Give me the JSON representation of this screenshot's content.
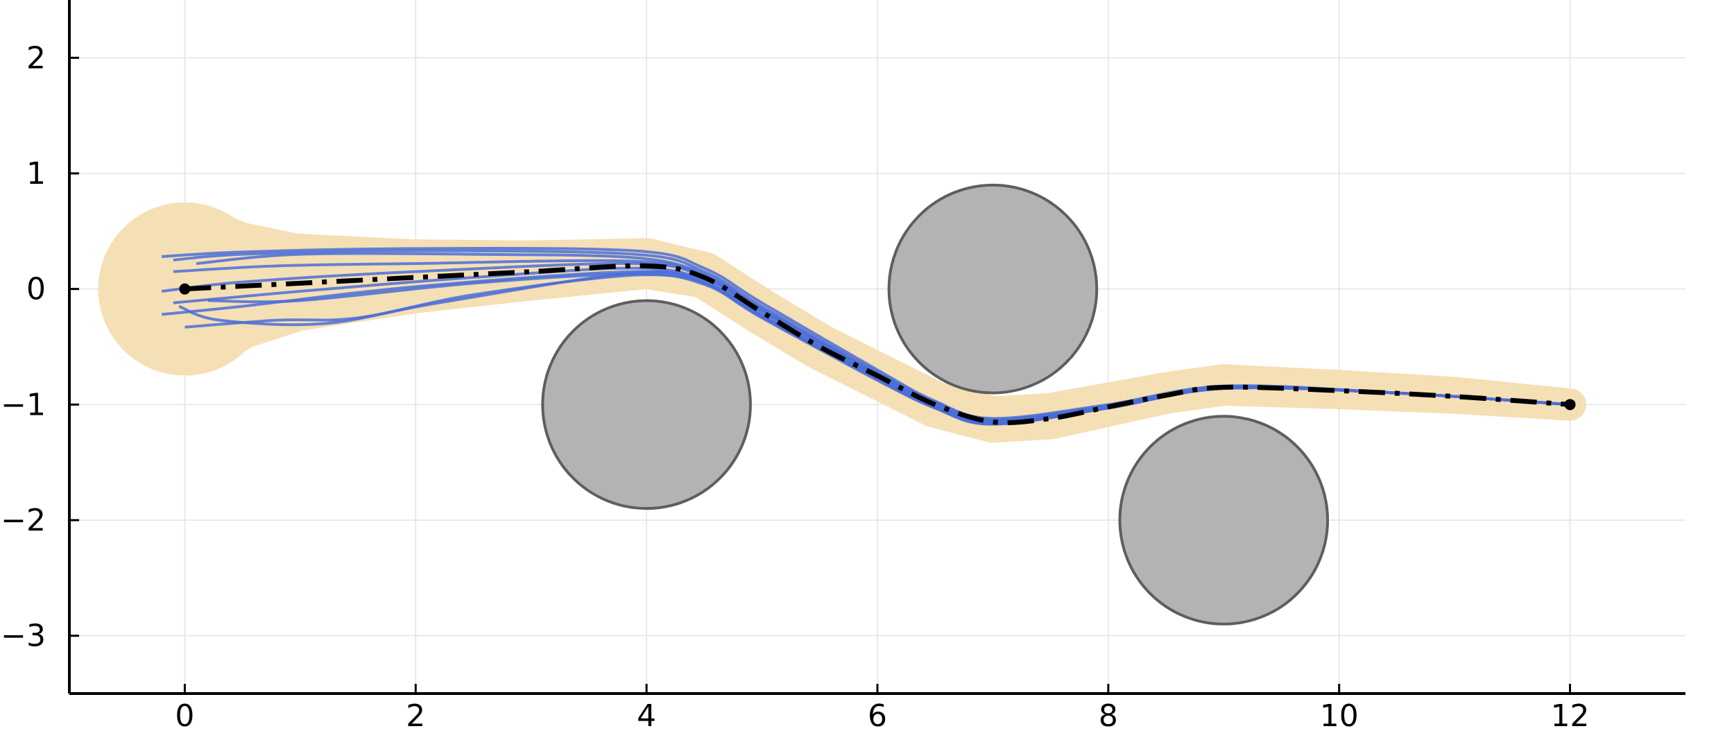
{
  "chart_data": {
    "type": "line",
    "title": "",
    "xlabel": "",
    "ylabel": "",
    "xlim": [
      -1,
      13
    ],
    "ylim": [
      -3.5,
      2.5
    ],
    "grid": true,
    "legend": "none",
    "x_ticks": [
      0,
      2,
      4,
      6,
      8,
      10,
      12
    ],
    "x_tick_labels": [
      "0",
      "2",
      "4",
      "6",
      "8",
      "10",
      "12"
    ],
    "y_ticks": [
      2,
      1,
      0,
      -1,
      -2,
      -3
    ],
    "y_tick_labels": [
      "2",
      "1",
      "0",
      "−1",
      "−2",
      "−3"
    ],
    "obstacles": [
      {
        "cx": 4,
        "cy": -1,
        "r": 0.9
      },
      {
        "cx": 7,
        "cy": 0,
        "r": 0.9
      },
      {
        "cx": 9,
        "cy": -2,
        "r": 0.9
      }
    ],
    "start": {
      "x": 0,
      "y": 0
    },
    "goal": {
      "x": 12,
      "y": -1
    },
    "reference_path": [
      {
        "x": 0,
        "y": 0
      },
      {
        "x": 1,
        "y": 0.05
      },
      {
        "x": 2,
        "y": 0.1
      },
      {
        "x": 3,
        "y": 0.15
      },
      {
        "x": 4,
        "y": 0.2
      },
      {
        "x": 4.5,
        "y": 0.1
      },
      {
        "x": 5,
        "y": -0.2
      },
      {
        "x": 5.5,
        "y": -0.5
      },
      {
        "x": 6,
        "y": -0.75
      },
      {
        "x": 6.5,
        "y": -1.0
      },
      {
        "x": 7,
        "y": -1.15
      },
      {
        "x": 7.5,
        "y": -1.12
      },
      {
        "x": 8,
        "y": -1.02
      },
      {
        "x": 8.5,
        "y": -0.92
      },
      {
        "x": 9,
        "y": -0.85
      },
      {
        "x": 10,
        "y": -0.88
      },
      {
        "x": 11,
        "y": -0.93
      },
      {
        "x": 12,
        "y": -1.0
      }
    ],
    "uncertainty_band": [
      {
        "x": 0,
        "y": 0,
        "w": 0.75
      },
      {
        "x": 0.25,
        "y": 0.02,
        "w": 0.62
      },
      {
        "x": 1,
        "y": 0.06,
        "w": 0.42
      },
      {
        "x": 2,
        "y": 0.11,
        "w": 0.32
      },
      {
        "x": 3,
        "y": 0.16,
        "w": 0.26
      },
      {
        "x": 4,
        "y": 0.22,
        "w": 0.22
      },
      {
        "x": 4.5,
        "y": 0.12,
        "w": 0.2
      },
      {
        "x": 5,
        "y": -0.2,
        "w": 0.2
      },
      {
        "x": 5.5,
        "y": -0.5,
        "w": 0.2
      },
      {
        "x": 6,
        "y": -0.75,
        "w": 0.2
      },
      {
        "x": 6.5,
        "y": -1.0,
        "w": 0.2
      },
      {
        "x": 7,
        "y": -1.13,
        "w": 0.2
      },
      {
        "x": 7.5,
        "y": -1.1,
        "w": 0.2
      },
      {
        "x": 8,
        "y": -1.0,
        "w": 0.19
      },
      {
        "x": 8.5,
        "y": -0.9,
        "w": 0.18
      },
      {
        "x": 9,
        "y": -0.83,
        "w": 0.18
      },
      {
        "x": 10,
        "y": -0.87,
        "w": 0.17
      },
      {
        "x": 11,
        "y": -0.92,
        "w": 0.16
      },
      {
        "x": 12,
        "y": -1.0,
        "w": 0.14
      }
    ],
    "sample_trajectories": [
      {
        "points": [
          {
            "x": -0.2,
            "y": 0.28
          },
          {
            "x": 0.5,
            "y": 0.32
          },
          {
            "x": 2,
            "y": 0.35
          },
          {
            "x": 3.9,
            "y": 0.33
          },
          {
            "x": 4.5,
            "y": 0.18
          },
          {
            "x": 5,
            "y": -0.12
          },
          {
            "x": 6,
            "y": -0.7
          },
          {
            "x": 6.5,
            "y": -0.97
          },
          {
            "x": 7,
            "y": -1.12
          },
          {
            "x": 8,
            "y": -1.0
          },
          {
            "x": 9,
            "y": -0.84
          },
          {
            "x": 10.5,
            "y": -0.9
          },
          {
            "x": 12,
            "y": -1.0
          }
        ]
      },
      {
        "points": [
          {
            "x": -0.1,
            "y": 0.25
          },
          {
            "x": 0.5,
            "y": 0.3
          },
          {
            "x": 2,
            "y": 0.33
          },
          {
            "x": 3.9,
            "y": 0.3
          },
          {
            "x": 4.5,
            "y": 0.15
          },
          {
            "x": 5,
            "y": -0.15
          },
          {
            "x": 6,
            "y": -0.72
          },
          {
            "x": 6.5,
            "y": -0.98
          },
          {
            "x": 7,
            "y": -1.13
          },
          {
            "x": 8,
            "y": -1.01
          },
          {
            "x": 9,
            "y": -0.85
          },
          {
            "x": 10.5,
            "y": -0.9
          },
          {
            "x": 12,
            "y": -1.0
          }
        ]
      },
      {
        "points": [
          {
            "x": 0.1,
            "y": 0.22
          },
          {
            "x": 1,
            "y": 0.3
          },
          {
            "x": 2.5,
            "y": 0.3
          },
          {
            "x": 3.9,
            "y": 0.27
          },
          {
            "x": 4.5,
            "y": 0.13
          },
          {
            "x": 5,
            "y": -0.17
          },
          {
            "x": 6,
            "y": -0.73
          },
          {
            "x": 6.5,
            "y": -0.99
          },
          {
            "x": 7,
            "y": -1.14
          },
          {
            "x": 8,
            "y": -1.01
          },
          {
            "x": 9,
            "y": -0.85
          },
          {
            "x": 10.5,
            "y": -0.9
          },
          {
            "x": 12,
            "y": -1.0
          }
        ]
      },
      {
        "points": [
          {
            "x": -0.2,
            "y": -0.02
          },
          {
            "x": 0.5,
            "y": 0.06
          },
          {
            "x": 2,
            "y": 0.15
          },
          {
            "x": 3.9,
            "y": 0.22
          },
          {
            "x": 4.5,
            "y": 0.1
          },
          {
            "x": 5,
            "y": -0.19
          },
          {
            "x": 6,
            "y": -0.75
          },
          {
            "x": 6.5,
            "y": -1.0
          },
          {
            "x": 7,
            "y": -1.15
          },
          {
            "x": 8,
            "y": -1.02
          },
          {
            "x": 9,
            "y": -0.85
          },
          {
            "x": 10.5,
            "y": -0.9
          },
          {
            "x": 12,
            "y": -1.0
          }
        ]
      },
      {
        "points": [
          {
            "x": -0.1,
            "y": -0.12
          },
          {
            "x": 1,
            "y": -0.02
          },
          {
            "x": 2.5,
            "y": 0.1
          },
          {
            "x": 3.9,
            "y": 0.18
          },
          {
            "x": 4.5,
            "y": 0.08
          },
          {
            "x": 5,
            "y": -0.21
          },
          {
            "x": 6,
            "y": -0.76
          },
          {
            "x": 6.5,
            "y": -1.01
          },
          {
            "x": 7,
            "y": -1.16
          },
          {
            "x": 8,
            "y": -1.02
          },
          {
            "x": 9,
            "y": -0.86
          },
          {
            "x": 10.5,
            "y": -0.9
          },
          {
            "x": 12,
            "y": -1.0
          }
        ]
      },
      {
        "points": [
          {
            "x": -0.2,
            "y": -0.22
          },
          {
            "x": 0.5,
            "y": -0.15
          },
          {
            "x": 2,
            "y": 0.02
          },
          {
            "x": 3.9,
            "y": 0.15
          },
          {
            "x": 4.5,
            "y": 0.06
          },
          {
            "x": 5,
            "y": -0.23
          },
          {
            "x": 6,
            "y": -0.77
          },
          {
            "x": 6.5,
            "y": -1.02
          },
          {
            "x": 7,
            "y": -1.16
          },
          {
            "x": 8,
            "y": -1.03
          },
          {
            "x": 9,
            "y": -0.86
          },
          {
            "x": 10.5,
            "y": -0.9
          },
          {
            "x": 12,
            "y": -1.0
          }
        ]
      },
      {
        "points": [
          {
            "x": 0.2,
            "y": -0.1
          },
          {
            "x": 1,
            "y": -0.1
          },
          {
            "x": 2.5,
            "y": 0.05
          },
          {
            "x": 3.9,
            "y": 0.13
          },
          {
            "x": 4.5,
            "y": 0.05
          },
          {
            "x": 5,
            "y": -0.24
          },
          {
            "x": 6,
            "y": -0.78
          },
          {
            "x": 6.5,
            "y": -1.03
          },
          {
            "x": 7,
            "y": -1.17
          },
          {
            "x": 8,
            "y": -1.03
          },
          {
            "x": 9,
            "y": -0.86
          },
          {
            "x": 10.5,
            "y": -0.9
          },
          {
            "x": 12,
            "y": -1.0
          }
        ]
      },
      {
        "points": [
          {
            "x": 0.0,
            "y": -0.33
          },
          {
            "x": 0.8,
            "y": -0.27
          },
          {
            "x": 1.5,
            "y": -0.25
          },
          {
            "x": 2.5,
            "y": -0.05
          },
          {
            "x": 3.9,
            "y": 0.12
          },
          {
            "x": 4.5,
            "y": 0.04
          },
          {
            "x": 5,
            "y": -0.25
          },
          {
            "x": 6,
            "y": -0.79
          },
          {
            "x": 6.5,
            "y": -1.03
          },
          {
            "x": 7,
            "y": -1.17
          },
          {
            "x": 8,
            "y": -1.03
          },
          {
            "x": 9,
            "y": -0.86
          },
          {
            "x": 10.5,
            "y": -0.9
          },
          {
            "x": 12,
            "y": -1.0
          }
        ]
      },
      {
        "points": [
          {
            "x": -0.1,
            "y": 0.15
          },
          {
            "x": 0.8,
            "y": 0.2
          },
          {
            "x": 2,
            "y": 0.22
          },
          {
            "x": 3.9,
            "y": 0.24
          },
          {
            "x": 4.5,
            "y": 0.11
          },
          {
            "x": 5,
            "y": -0.18
          },
          {
            "x": 6,
            "y": -0.74
          },
          {
            "x": 6.5,
            "y": -0.99
          },
          {
            "x": 7,
            "y": -1.14
          },
          {
            "x": 8,
            "y": -1.01
          },
          {
            "x": 9,
            "y": -0.85
          },
          {
            "x": 10.5,
            "y": -0.9
          },
          {
            "x": 12,
            "y": -1.0
          }
        ]
      },
      {
        "points": [
          {
            "x": -0.05,
            "y": -0.15
          },
          {
            "x": 0.3,
            "y": -0.27
          },
          {
            "x": 1.2,
            "y": -0.3
          },
          {
            "x": 2.2,
            "y": -0.12
          },
          {
            "x": 3.9,
            "y": 0.14
          },
          {
            "x": 4.5,
            "y": 0.05
          },
          {
            "x": 5,
            "y": -0.24
          },
          {
            "x": 6,
            "y": -0.78
          },
          {
            "x": 6.5,
            "y": -1.02
          },
          {
            "x": 7,
            "y": -1.16
          },
          {
            "x": 8,
            "y": -1.03
          },
          {
            "x": 9,
            "y": -0.86
          },
          {
            "x": 10.5,
            "y": -0.9
          },
          {
            "x": 12,
            "y": -1.0
          }
        ]
      }
    ],
    "colors": {
      "band": "#f5dfb4",
      "trajectory": "#4a6fd8",
      "reference": "#000000",
      "obstacle_fill": "#b3b3b3",
      "obstacle_stroke": "#5e5e5e",
      "grid": "#e3e3e3",
      "axis": "#000000"
    }
  }
}
